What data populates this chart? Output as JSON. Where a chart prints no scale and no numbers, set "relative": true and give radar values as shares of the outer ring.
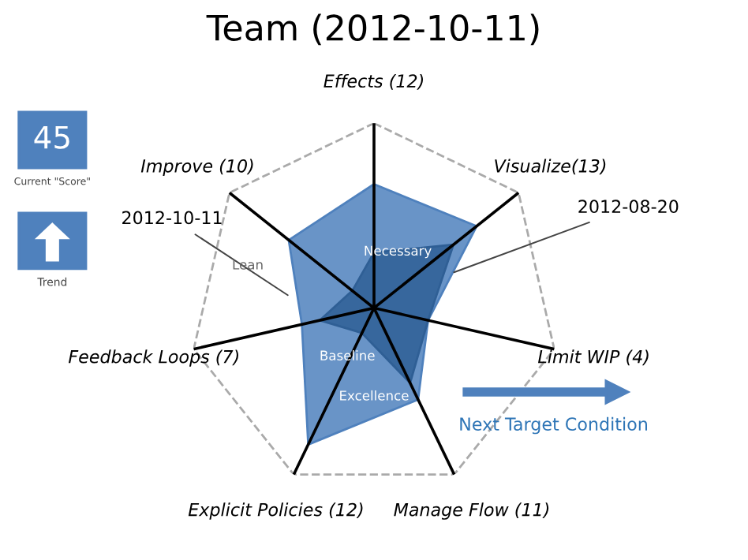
{
  "chart_data": {
    "type": "radar",
    "title": "Team (2012-10-11)",
    "relative": true,
    "categories": [
      "Effects (12)",
      "Visualize(13)",
      "Limit WIP (4)",
      "Manage Flow (11)",
      "Explicit Policies (12)",
      "Feedback Loops (7)",
      "Improve (10)"
    ],
    "series": [
      {
        "name": "2012-10-11",
        "color": "#4f81bd",
        "values": [
          0.67,
          0.71,
          0.3,
          0.55,
          0.82,
          0.4,
          0.59
        ]
      },
      {
        "name": "2012-08-20",
        "color": "#2f5f95",
        "values": [
          0.3,
          0.55,
          0.3,
          0.45,
          0.15,
          0.3,
          0.15
        ]
      }
    ],
    "grid": true,
    "annotations": [
      "45",
      "Current \"Score\"",
      "Trend",
      "Next Target Condition",
      "Lean",
      "Necessary",
      "Baseline",
      "Excellence"
    ]
  }
}
